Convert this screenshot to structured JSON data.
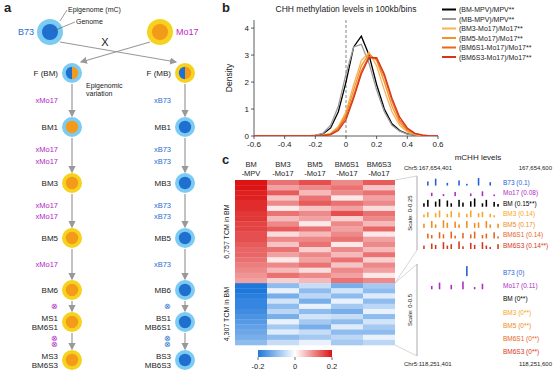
{
  "diagram": {
    "label": "a",
    "annotations": [
      "Epigenome (mC)",
      "Genome"
    ],
    "cross": "X",
    "variation": [
      "Epigenomic",
      "variation"
    ],
    "parents": [
      {
        "label": "B73",
        "core": [
          "#1f6fd0"
        ],
        "ring": "#7ccbf2",
        "label_color": "#1f6fd0"
      },
      {
        "label": "Mo17",
        "core": [
          "#f49a1a"
        ],
        "ring": "#f6d21e",
        "label_color": "#c21fc4"
      }
    ],
    "columns": [
      {
        "step_color": "#b01fc0",
        "nodes": [
          {
            "label": [
              "F (BM)"
            ],
            "core": [
              "#1f6fd0",
              "#f49a1a"
            ],
            "ring": "#7ccbf2"
          },
          {
            "label": [
              "BM1"
            ],
            "core": [
              "#f49a1a"
            ],
            "ring": "#7ccbf2"
          },
          {
            "label": [
              "BM3"
            ],
            "core": [
              "#f49a1a"
            ],
            "ring": "#f6d21e"
          },
          {
            "label": [
              "BM5"
            ],
            "core": [
              "#f49a1a"
            ],
            "ring": "#f6d21e"
          },
          {
            "label": [
              "BM6"
            ],
            "core": [
              "#f49a1a"
            ],
            "ring": "#f6d21e"
          },
          {
            "label": [
              "MS1",
              "BM6S1"
            ],
            "core": [
              "#f49a1a"
            ],
            "ring": "#f6d21e"
          },
          {
            "label": [
              "MS3",
              "BM6S3"
            ],
            "core": [
              "#f49a1a"
            ],
            "ring": "#f6d21e"
          }
        ],
        "steps": [
          [
            "xMo17"
          ],
          [
            "xMo17",
            "xMo17"
          ],
          [
            "xMo17",
            "xMo17"
          ],
          [
            "xMo17"
          ],
          [
            "⊗"
          ],
          [
            "⊗",
            "⊗"
          ]
        ]
      },
      {
        "step_color": "#1f6fd0",
        "nodes": [
          {
            "label": [
              "F (MB)"
            ],
            "core": [
              "#1f6fd0",
              "#f49a1a"
            ],
            "ring": "#f6d21e"
          },
          {
            "label": [
              "MB1"
            ],
            "core": [
              "#1f6fd0"
            ],
            "ring": "#7ccbf2"
          },
          {
            "label": [
              "MB3"
            ],
            "core": [
              "#1f6fd0"
            ],
            "ring": "#7ccbf2"
          },
          {
            "label": [
              "MB5"
            ],
            "core": [
              "#1f6fd0"
            ],
            "ring": "#7ccbf2"
          },
          {
            "label": [
              "MB6"
            ],
            "core": [
              "#1f6fd0"
            ],
            "ring": "#7ccbf2"
          },
          {
            "label": [
              "BS1",
              "MB6S1"
            ],
            "core": [
              "#1f6fd0"
            ],
            "ring": "#7ccbf2"
          },
          {
            "label": [
              "BS3",
              "MB6S3"
            ],
            "core": [
              "#1f6fd0"
            ],
            "ring": "#7ccbf2"
          }
        ],
        "steps": [
          [
            "xB73"
          ],
          [
            "xB73",
            "xB73"
          ],
          [
            "xB73",
            "xB73"
          ],
          [
            "xB73"
          ],
          [
            "⊗"
          ],
          [
            "⊗",
            "⊗"
          ]
        ]
      }
    ]
  },
  "chart_data": [
    {
      "label": "b",
      "type": "line",
      "title": "CHH methylation levels in 100kb/bins",
      "y_label": "Density",
      "xlim": [
        -0.6,
        0.6
      ],
      "ylim": [
        0,
        4.3
      ],
      "xticks": [
        -0.6,
        -0.4,
        -0.2,
        0,
        0.2,
        0.4,
        0.6
      ],
      "yticks": [
        0,
        1,
        2,
        3,
        4
      ],
      "x": [
        -0.6,
        -0.55,
        -0.5,
        -0.45,
        -0.4,
        -0.35,
        -0.3,
        -0.25,
        -0.2,
        -0.15,
        -0.1,
        -0.05,
        0,
        0.05,
        0.1,
        0.15,
        0.2,
        0.25,
        0.3,
        0.35,
        0.4,
        0.45,
        0.5,
        0.55,
        0.6
      ],
      "series": [
        {
          "name": "(BM-MPV)/MPV**",
          "color": "#000000",
          "values": [
            0,
            0,
            0,
            0,
            0,
            0,
            0,
            0,
            0.02,
            0.08,
            0.3,
            0.9,
            2.0,
            3.3,
            3.7,
            3.0,
            1.9,
            1.0,
            0.45,
            0.2,
            0.08,
            0.03,
            0.01,
            0,
            0
          ]
        },
        {
          "name": "(MB-MPV)/MPV**",
          "color": "#9a9a9a",
          "values": [
            0,
            0,
            0,
            0,
            0,
            0,
            0,
            0,
            0.03,
            0.1,
            0.4,
            1.1,
            2.3,
            3.3,
            3.4,
            2.7,
            1.7,
            0.9,
            0.4,
            0.18,
            0.07,
            0.03,
            0.01,
            0,
            0
          ]
        },
        {
          "name": "(BM3-Mo17)/Mo17**",
          "color": "#f7b356",
          "values": [
            0,
            0,
            0,
            0,
            0,
            0,
            0,
            0,
            0,
            0.03,
            0.1,
            0.35,
            0.9,
            1.9,
            2.8,
            3.1,
            2.6,
            1.7,
            0.9,
            0.4,
            0.15,
            0.05,
            0.02,
            0,
            0
          ]
        },
        {
          "name": "(BM5-Mo17)/Mo17**",
          "color": "#f39325",
          "values": [
            0,
            0,
            0,
            0,
            0,
            0,
            0,
            0,
            0,
            0.02,
            0.08,
            0.3,
            0.8,
            1.7,
            2.6,
            3.05,
            2.8,
            2.0,
            1.1,
            0.5,
            0.2,
            0.07,
            0.02,
            0,
            0
          ]
        },
        {
          "name": "(BM6S1-Mo17)/Mo17**",
          "color": "#e8681c",
          "values": [
            0,
            0,
            0,
            0,
            0,
            0,
            0,
            0,
            0,
            0.02,
            0.06,
            0.25,
            0.7,
            1.5,
            2.4,
            2.95,
            2.85,
            2.2,
            1.3,
            0.6,
            0.25,
            0.09,
            0.03,
            0,
            0
          ]
        },
        {
          "name": "(BM6S3-Mo17)/Mo17**",
          "color": "#d8331b",
          "values": [
            0,
            0,
            0,
            0,
            0,
            0,
            0,
            0,
            0,
            0.01,
            0.05,
            0.2,
            0.6,
            1.4,
            2.3,
            2.9,
            2.9,
            2.3,
            1.4,
            0.7,
            0.3,
            0.1,
            0.03,
            0,
            0
          ]
        }
      ]
    },
    {
      "label": "c",
      "type": "heatmap",
      "columns": [
        "BM -MPV",
        "BM3 -Mo17",
        "BM5 -Mo17",
        "BM6S1 -Mo17",
        "BM6S3 -Mo17"
      ],
      "sections": [
        {
          "label": "6,757 TCM in BM",
          "cells": [
            [
              0.2,
              0.12,
              0.15,
              0.1,
              0.14
            ],
            [
              0.2,
              0.08,
              0.1,
              0.12,
              0.05
            ],
            [
              0.19,
              0.14,
              0.06,
              0.1,
              0.12
            ],
            [
              0.19,
              0.05,
              0.12,
              0.02,
              0.08
            ],
            [
              0.18,
              0.1,
              0.14,
              0.12,
              0.1
            ],
            [
              0.18,
              0.02,
              0.05,
              0.08,
              0.03
            ],
            [
              0.17,
              0.12,
              0.1,
              0.15,
              0.12
            ],
            [
              0.17,
              0.06,
              0.08,
              0.04,
              0.1
            ],
            [
              0.16,
              0.1,
              0.02,
              0.1,
              0.06
            ],
            [
              0.16,
              0.14,
              0.12,
              0.08,
              0.13
            ],
            [
              0.15,
              0.03,
              0.06,
              0.1,
              0.02
            ],
            [
              0.15,
              0.1,
              0.1,
              0.12,
              0.08
            ],
            [
              0.14,
              0.05,
              0.12,
              0.02,
              0.1
            ],
            [
              0.13,
              0.12,
              0.04,
              0.1,
              0.06
            ],
            [
              0.13,
              0.08,
              0.1,
              0.06,
              0.12
            ],
            [
              0.12,
              0.02,
              0.08,
              0.12,
              0.04
            ],
            [
              0.11,
              0.1,
              0.12,
              0.05,
              0.1
            ],
            [
              0.1,
              0.06,
              0.03,
              0.1,
              0.08
            ],
            [
              0.09,
              0.12,
              0.1,
              0.08,
              0.02
            ],
            [
              0.08,
              0.04,
              0.06,
              0.12,
              0.1
            ]
          ]
        },
        {
          "label": "4,307 TCM in BM",
          "cells": [
            [
              -0.2,
              -0.1,
              -0.05,
              -0.12,
              -0.08
            ],
            [
              -0.2,
              -0.02,
              -0.1,
              -0.04,
              -0.1
            ],
            [
              -0.19,
              -0.12,
              -0.06,
              -0.1,
              -0.03
            ],
            [
              -0.18,
              -0.04,
              -0.12,
              -0.02,
              -0.1
            ],
            [
              -0.18,
              -0.1,
              -0.02,
              -0.08,
              -0.06
            ],
            [
              -0.17,
              -0.06,
              -0.1,
              -0.12,
              -0.02
            ],
            [
              -0.16,
              -0.12,
              -0.04,
              -0.05,
              -0.1
            ],
            [
              -0.15,
              -0.02,
              -0.08,
              -0.1,
              -0.04
            ],
            [
              -0.14,
              -0.08,
              -0.12,
              -0.03,
              -0.08
            ],
            [
              -0.13,
              -0.03,
              -0.05,
              -0.1,
              -0.1
            ],
            [
              -0.12,
              -0.1,
              -0.08,
              -0.06,
              -0.02
            ],
            [
              -0.1,
              -0.05,
              -0.02,
              -0.08,
              -0.06
            ]
          ]
        }
      ],
      "colorbar": {
        "range": [
          -0.2,
          0.2
        ],
        "ticks": [
          -0.2,
          0,
          0.2
        ]
      }
    }
  ],
  "browser": {
    "title": "mCHH levels",
    "blocks": [
      {
        "scale_label": "Scale: 0-0.25",
        "ylim": [
          0,
          0.25
        ],
        "start": "Chr5:167,654,401",
        "end": "167,654,600",
        "tracks": [
          {
            "name": "B73 (0.1)",
            "color": "#1f5fd6",
            "values": [
              0,
              0.12,
              0,
              0.2,
              0,
              0,
              0.08,
              0,
              0,
              0.15,
              0,
              0.05,
              0,
              0,
              0.22,
              0,
              0,
              0.1,
              0,
              0
            ]
          },
          {
            "name": "Mo17 (0.08)",
            "color": "#b02ac0",
            "values": [
              0,
              0,
              0.1,
              0,
              0,
              0.06,
              0,
              0,
              0.12,
              0,
              0,
              0,
              0.08,
              0,
              0,
              0.14,
              0,
              0,
              0.05,
              0
            ]
          },
          {
            "name": "BM (0.15**)",
            "color": "#000000",
            "values": [
              0.1,
              0.2,
              0,
              0.15,
              0.22,
              0,
              0.18,
              0.1,
              0,
              0.2,
              0.12,
              0,
              0.16,
              0.24,
              0,
              0.1,
              0.2,
              0,
              0.14,
              0.08
            ]
          },
          {
            "name": "BM3 (0.14)",
            "color": "#f5a623",
            "values": [
              0.08,
              0.15,
              0,
              0.12,
              0.2,
              0,
              0.1,
              0.18,
              0,
              0.14,
              0,
              0.1,
              0.2,
              0,
              0.12,
              0.16,
              0,
              0.1,
              0.06,
              0
            ]
          },
          {
            "name": "BM5 (0.17)",
            "color": "#f08a1c",
            "values": [
              0.12,
              0,
              0.2,
              0.1,
              0,
              0.22,
              0.15,
              0,
              0.18,
              0.1,
              0,
              0.2,
              0,
              0.14,
              0.16,
              0,
              0.2,
              0.1,
              0,
              0.12
            ]
          },
          {
            "name": "BM6S1 (0.14)",
            "color": "#e8641a",
            "values": [
              0,
              0.14,
              0.1,
              0,
              0.18,
              0.12,
              0,
              0.2,
              0.08,
              0,
              0.16,
              0,
              0.12,
              0.2,
              0,
              0.1,
              0.14,
              0,
              0.18,
              0.06
            ]
          },
          {
            "name": "BM6S3 (0.14**)",
            "color": "#d6361a",
            "values": [
              0.1,
              0,
              0.16,
              0.12,
              0,
              0.2,
              0.1,
              0.14,
              0,
              0.22,
              0.08,
              0,
              0.18,
              0.12,
              0,
              0.2,
              0.1,
              0.06,
              0,
              0.14
            ]
          }
        ]
      },
      {
        "scale_label": "Scale: 0-0.5",
        "ylim": [
          0,
          0.5
        ],
        "start": "Chr5:118,251,401",
        "end": "118,251,600",
        "tracks": [
          {
            "name": "B73 (0)",
            "color": "#1f5fd6",
            "values": [
              0,
              0,
              0,
              0,
              0,
              0,
              0,
              0,
              0,
              0,
              0,
              0.45,
              0,
              0,
              0,
              0,
              0,
              0,
              0,
              0
            ]
          },
          {
            "name": "Mo17 (0.11)",
            "color": "#b02ac0",
            "values": [
              0,
              0,
              0.15,
              0,
              0.3,
              0,
              0,
              0.2,
              0,
              0,
              0.35,
              0,
              0,
              0.1,
              0,
              0.25,
              0,
              0,
              0,
              0
            ]
          },
          {
            "name": "BM (0**)",
            "color": "#000000",
            "values": [
              0,
              0,
              0,
              0,
              0,
              0,
              0,
              0,
              0,
              0,
              0,
              0,
              0,
              0,
              0,
              0,
              0,
              0,
              0,
              0
            ]
          },
          {
            "name": "BM3 (0**)",
            "color": "#f5a623",
            "values": [
              0,
              0,
              0,
              0,
              0,
              0,
              0,
              0,
              0,
              0,
              0,
              0,
              0,
              0,
              0,
              0,
              0,
              0,
              0,
              0
            ]
          },
          {
            "name": "BM5 (0**)",
            "color": "#f08a1c",
            "values": [
              0,
              0,
              0,
              0,
              0,
              0,
              0,
              0,
              0,
              0,
              0,
              0,
              0,
              0,
              0,
              0,
              0,
              0,
              0,
              0
            ]
          },
          {
            "name": "BM6S1 (0**)",
            "color": "#e8641a",
            "values": [
              0,
              0,
              0,
              0,
              0,
              0,
              0,
              0,
              0,
              0,
              0,
              0,
              0,
              0,
              0,
              0,
              0,
              0,
              0,
              0
            ]
          },
          {
            "name": "BM6S3 (0**)",
            "color": "#d6361a",
            "values": [
              0,
              0,
              0,
              0,
              0,
              0,
              0,
              0,
              0,
              0,
              0,
              0,
              0,
              0,
              0,
              0,
              0,
              0,
              0,
              0
            ]
          }
        ]
      }
    ]
  }
}
